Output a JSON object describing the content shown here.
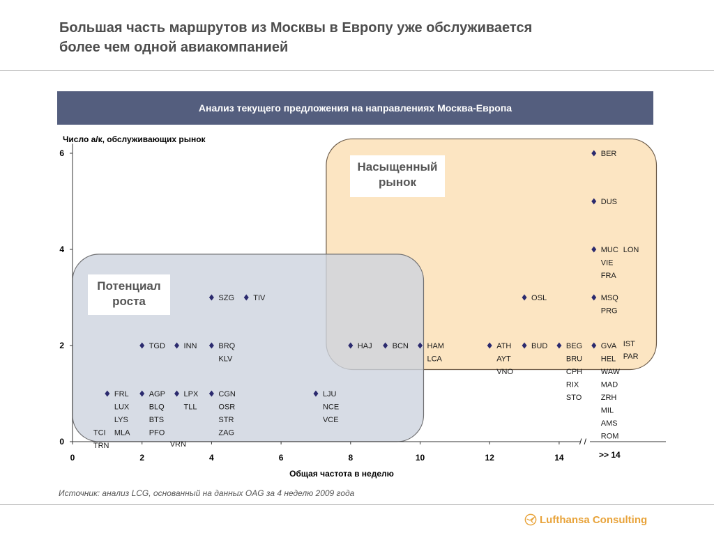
{
  "title": {
    "line1": "Большая часть маршрутов из Москвы в Европу уже обслуживается",
    "line2": "более чем одной авиакомпанией"
  },
  "banner": "Анализ текущего предложения на направлениях Москва-Европа",
  "source": "Источник: анализ LCG, основанный на данных OAG за 4 неделю 2009 года",
  "logo_text": "Lufthansa Consulting",
  "colors": {
    "banner": "#545e7e",
    "marker": "#2b2a6e",
    "saturated_fill": "#fbe1b7",
    "potential_fill": "#cdd3df",
    "logo": "#e8a33a"
  },
  "chart_data": {
    "type": "scatter",
    "ylabel": "Число а/к, обслуживающих рынок",
    "xlabel": "Общая частота в неделю",
    "x_ticks": [
      "0",
      "2",
      "4",
      "6",
      "8",
      "10",
      "12",
      "14"
    ],
    "y_ticks": [
      "0",
      "2",
      "4",
      "6"
    ],
    "xlim": [
      0,
      15
    ],
    "ylim": [
      0,
      6
    ],
    "axis_break_label": "/ /",
    "overflow_label": ">> 14",
    "zones": [
      {
        "label_lines": [
          "Насыщенный",
          "рынок"
        ],
        "x_range": [
          7.3,
          16.8
        ],
        "y_range": [
          1.5,
          6.3
        ]
      },
      {
        "label_lines": [
          "Потенциал",
          "роста"
        ],
        "x_range": [
          0,
          10.1
        ],
        "y_range": [
          0,
          3.9
        ]
      }
    ],
    "points": [
      {
        "x": 1,
        "y": 1,
        "labels": [
          "FRL",
          "LUX",
          "LYS",
          "MLA"
        ]
      },
      {
        "x": 2,
        "y": 1,
        "labels": [
          "AGP",
          "BLQ",
          "BTS",
          "PFO"
        ]
      },
      {
        "x": 3,
        "y": 1,
        "labels": [
          "LPX",
          "TLL"
        ]
      },
      {
        "x": 4,
        "y": 1,
        "labels": [
          "CGN",
          "OSR",
          "STR",
          "ZAG"
        ]
      },
      {
        "x": 7,
        "y": 1,
        "labels": [
          "LJU",
          "NCE",
          "VCE"
        ]
      },
      {
        "x": 2,
        "y": 2,
        "labels": [
          "TGD"
        ]
      },
      {
        "x": 3,
        "y": 2,
        "labels": [
          "INN"
        ]
      },
      {
        "x": 4,
        "y": 2,
        "labels": [
          "BRQ",
          "KLV"
        ]
      },
      {
        "x": 8,
        "y": 2,
        "labels": [
          "HAJ"
        ]
      },
      {
        "x": 9,
        "y": 2,
        "labels": [
          "BCN"
        ]
      },
      {
        "x": 10,
        "y": 2,
        "labels": [
          "HAM",
          "LCA"
        ]
      },
      {
        "x": 12,
        "y": 2,
        "labels": [
          "ATH",
          "AYT",
          "VNO"
        ]
      },
      {
        "x": 13,
        "y": 2,
        "labels": [
          "BUD"
        ]
      },
      {
        "x": 14,
        "y": 2,
        "labels": [
          "BEG",
          "BRU",
          "CPH",
          "RIX",
          "STO"
        ]
      },
      {
        "x": 15,
        "y": 2,
        "labels": [
          "GVA",
          "HEL",
          "WAW",
          "MAD",
          "ZRH",
          "MIL",
          "AMS",
          "ROM"
        ]
      },
      {
        "x": 4,
        "y": 3,
        "labels": [
          "SZG"
        ]
      },
      {
        "x": 5,
        "y": 3,
        "labels": [
          "TIV"
        ]
      },
      {
        "x": 13,
        "y": 3,
        "labels": [
          "OSL"
        ]
      },
      {
        "x": 15,
        "y": 3,
        "labels": [
          "MSQ",
          "PRG"
        ]
      },
      {
        "x": 15,
        "y": 4,
        "labels": [
          "MUC",
          "VIE",
          "FRA"
        ]
      },
      {
        "x": 15,
        "y": 5,
        "labels": [
          "DUS"
        ]
      },
      {
        "x": 15,
        "y": 6,
        "labels": [
          "BER"
        ]
      }
    ],
    "extra_labels": [
      {
        "text": "TCI",
        "x": 1,
        "y": 1
      },
      {
        "text": "TRN",
        "x": 1,
        "y": 1
      },
      {
        "text": "VRN",
        "x": 2,
        "y": 1
      },
      {
        "text": "LON",
        "x": 15,
        "y": 4
      },
      {
        "text": "IST",
        "x": 15,
        "y": 2
      },
      {
        "text": "PAR",
        "x": 15,
        "y": 2
      }
    ]
  }
}
